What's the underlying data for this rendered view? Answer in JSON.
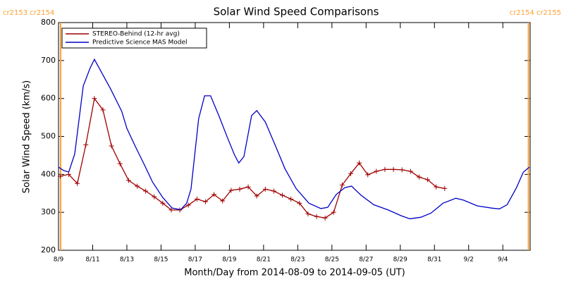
{
  "chart_data": {
    "type": "line",
    "title": "Solar Wind Speed Comparisons",
    "x_label": "Month/Day from 2014-08-09 to 2014-09-05 (UT)",
    "y_label": "Solar Wind Speed (km/s)",
    "xlim": [
      0,
      27.6
    ],
    "ylim": [
      200,
      800
    ],
    "yticks": [
      200,
      300,
      400,
      500,
      600,
      700,
      800
    ],
    "xticks": [
      {
        "value": 0,
        "label": "8/9"
      },
      {
        "value": 2,
        "label": "8/11"
      },
      {
        "value": 4,
        "label": "8/13"
      },
      {
        "value": 6,
        "label": "8/15"
      },
      {
        "value": 8,
        "label": "8/17"
      },
      {
        "value": 10,
        "label": "8/19"
      },
      {
        "value": 12,
        "label": "8/21"
      },
      {
        "value": 14,
        "label": "8/23"
      },
      {
        "value": 16,
        "label": "8/25"
      },
      {
        "value": 18,
        "label": "8/27"
      },
      {
        "value": 20,
        "label": "8/29"
      },
      {
        "value": 22,
        "label": "8/31"
      },
      {
        "value": 24,
        "label": "9/2"
      },
      {
        "value": 26,
        "label": "9/4"
      }
    ],
    "legend": "upper left",
    "annotations": [
      {
        "text": "cr2153 cr2154",
        "x": 0.12,
        "color": "#ffa030",
        "side": "left"
      },
      {
        "text": "cr2154 cr2155",
        "x": 27.5,
        "color": "#ffa030",
        "side": "right"
      }
    ],
    "series": [
      {
        "name": "STEREO-Behind (12-hr avg)",
        "color": "#a00000",
        "marker": "+",
        "x": [
          0.1,
          0.6,
          1.1,
          1.6,
          2.1,
          2.6,
          3.1,
          3.6,
          4.1,
          4.6,
          5.1,
          5.6,
          6.1,
          6.6,
          7.1,
          7.6,
          8.1,
          8.6,
          9.1,
          9.6,
          10.1,
          10.6,
          11.1,
          11.6,
          12.1,
          12.6,
          13.1,
          13.6,
          14.1,
          14.6,
          15.1,
          15.6,
          16.1,
          16.6,
          17.1,
          17.6,
          18.1,
          18.6,
          19.1,
          19.6,
          20.1,
          20.6,
          21.1,
          21.6,
          22.1,
          22.6
        ],
        "values": [
          395,
          400,
          376,
          478,
          600,
          570,
          475,
          428,
          384,
          369,
          356,
          341,
          324,
          306,
          306,
          319,
          335,
          328,
          347,
          330,
          358,
          361,
          367,
          343,
          361,
          356,
          345,
          335,
          324,
          296,
          289,
          285,
          300,
          372,
          402,
          430,
          399,
          408,
          413,
          413,
          412,
          408,
          393,
          386,
          367,
          363
        ]
      },
      {
        "name": "Predictive Science MAS Model",
        "color": "#0000c8",
        "marker": null,
        "x": [
          0,
          0.3,
          0.6,
          0.95,
          1.45,
          1.85,
          2.1,
          2.55,
          3.05,
          3.7,
          4.0,
          4.5,
          5.05,
          5.5,
          6.1,
          6.65,
          7.15,
          7.5,
          7.75,
          8.2,
          8.55,
          8.9,
          9.4,
          9.9,
          10.3,
          10.55,
          10.85,
          11.3,
          11.6,
          12.1,
          12.7,
          13.25,
          13.9,
          14.65,
          15.35,
          15.75,
          16.25,
          16.75,
          17.15,
          17.7,
          18.45,
          19.3,
          20.05,
          20.55,
          21.2,
          21.8,
          22.5,
          23.25,
          23.7,
          24.5,
          25.35,
          25.8,
          26.25,
          26.8,
          27.2,
          27.55
        ],
        "values": [
          419,
          410,
          406,
          454,
          633,
          680,
          703,
          666,
          625,
          566,
          521,
          473,
          423,
          380,
          339,
          311,
          307,
          324,
          361,
          547,
          607,
          607,
          553,
          495,
          451,
          430,
          447,
          555,
          568,
          538,
          475,
          415,
          363,
          324,
          310,
          313,
          347,
          365,
          369,
          345,
          320,
          306,
          291,
          283,
          287,
          298,
          324,
          337,
          332,
          317,
          311,
          309,
          320,
          365,
          406,
          419
        ]
      }
    ]
  }
}
